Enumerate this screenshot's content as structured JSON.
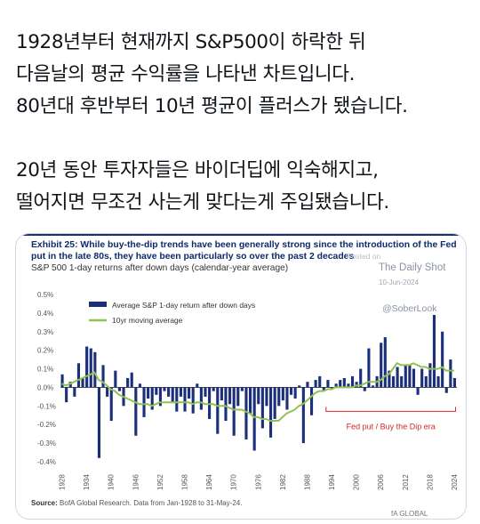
{
  "tweet": {
    "lines": [
      "1928년부터 현재까지 S&P500이 하락한 뒤",
      "다음날의 평균 수익률을 나타낸 차트입니다.",
      "80년대 후반부터 10년 평균이 플러스가 됐습니다.",
      "",
      "20년 동안 투자자들은 바이더딥에 익숙해지고,",
      "떨어지면 무조건 사는게 맞다는게 주입됐습니다."
    ]
  },
  "figure": {
    "exhibit": "Exhibit 25: While buy-the-dip trends have been generally strong since the introduction of the Fed put in the late 80s, they have been particularly so over the past 2 decades",
    "subtitle": "S&P 500 1-day returns after down days (calendar-year average)",
    "watermark_posted": "Posted on",
    "watermark_site": "The Daily Shot",
    "watermark_date": "10-Jun-2024",
    "watermark_handle": "@SoberLook",
    "source_label": "Source:",
    "source_text": "BofA Global Research. Data from Jan-1928 to 31-May-24.",
    "brand": "fA GLOBAL RESEARCH"
  },
  "chart_data": {
    "type": "bar",
    "title": "S&P 500 1-day returns after down days (calendar-year average)",
    "ylim": [
      -0.4,
      0.5
    ],
    "yticks": [
      "0.5%",
      "0.4%",
      "0.3%",
      "0.2%",
      "0.1%",
      "0.0%",
      "-0.1%",
      "-0.2%",
      "-0.3%",
      "-0.4%"
    ],
    "ytick_values": [
      0.5,
      0.4,
      0.3,
      0.2,
      0.1,
      0.0,
      -0.1,
      -0.2,
      -0.3,
      -0.4
    ],
    "xticks": [
      "1928",
      "1934",
      "1940",
      "1946",
      "1952",
      "1958",
      "1964",
      "1970",
      "1976",
      "1982",
      "1988",
      "1994",
      "2000",
      "2006",
      "2012",
      "2018",
      "2024"
    ],
    "x_start_year": 1928,
    "x_end_year": 2024,
    "legend": [
      "Average S&P 1-day return after down days",
      "10yr moving average"
    ],
    "legend_position": "top-left",
    "annotation": "Fed put / Buy the Dip era",
    "annotation_color": "#d62728",
    "bar_color": "#1b2f7a",
    "line_color": "#8fc251",
    "years": [
      1928,
      1929,
      1930,
      1931,
      1932,
      1933,
      1934,
      1935,
      1936,
      1937,
      1938,
      1939,
      1940,
      1941,
      1942,
      1943,
      1944,
      1945,
      1946,
      1947,
      1948,
      1949,
      1950,
      1951,
      1952,
      1953,
      1954,
      1955,
      1956,
      1957,
      1958,
      1959,
      1960,
      1961,
      1962,
      1963,
      1964,
      1965,
      1966,
      1967,
      1968,
      1969,
      1970,
      1971,
      1972,
      1973,
      1974,
      1975,
      1976,
      1977,
      1978,
      1979,
      1980,
      1981,
      1982,
      1983,
      1984,
      1985,
      1986,
      1987,
      1988,
      1989,
      1990,
      1991,
      1992,
      1993,
      1994,
      1995,
      1996,
      1997,
      1998,
      1999,
      2000,
      2001,
      2002,
      2003,
      2004,
      2005,
      2006,
      2007,
      2008,
      2009,
      2010,
      2011,
      2012,
      2013,
      2014,
      2015,
      2016,
      2017,
      2018,
      2019,
      2020,
      2021,
      2022,
      2023,
      2024
    ],
    "values": [
      0.07,
      -0.08,
      0.03,
      -0.05,
      0.13,
      0.05,
      0.22,
      0.21,
      0.19,
      -0.38,
      0.12,
      -0.05,
      -0.18,
      0.09,
      -0.02,
      -0.1,
      0.05,
      0.08,
      -0.26,
      0.02,
      -0.16,
      -0.06,
      -0.12,
      -0.04,
      -0.1,
      -0.02,
      -0.05,
      -0.08,
      -0.13,
      -0.05,
      -0.13,
      -0.06,
      -0.14,
      0.02,
      -0.12,
      -0.05,
      -0.17,
      -0.02,
      -0.25,
      -0.07,
      -0.18,
      -0.09,
      -0.26,
      -0.1,
      -0.02,
      -0.28,
      -0.14,
      -0.34,
      -0.09,
      -0.22,
      -0.1,
      -0.27,
      -0.17,
      -0.1,
      -0.07,
      -0.12,
      -0.04,
      -0.06,
      0.01,
      -0.3,
      0.03,
      -0.15,
      0.04,
      0.06,
      -0.02,
      0.04,
      -0.01,
      0.02,
      0.04,
      0.05,
      0.02,
      0.06,
      0.03,
      0.1,
      -0.02,
      0.21,
      0.01,
      0.06,
      0.24,
      0.27,
      0.09,
      0.06,
      0.11,
      0.06,
      0.12,
      0.12,
      0.1,
      -0.04,
      0.1,
      0.06,
      0.13,
      0.39,
      0.06,
      0.3,
      -0.03,
      0.15,
      0.05
    ],
    "moving_average": [
      0.02,
      0.01,
      0.02,
      0.03,
      0.04,
      0.05,
      0.06,
      0.07,
      0.08,
      0.04,
      0.03,
      0.01,
      -0.01,
      -0.02,
      -0.04,
      -0.05,
      -0.06,
      -0.07,
      -0.08,
      -0.09,
      -0.09,
      -0.09,
      -0.1,
      -0.09,
      -0.08,
      -0.08,
      -0.08,
      -0.08,
      -0.08,
      -0.08,
      -0.08,
      -0.08,
      -0.09,
      -0.08,
      -0.08,
      -0.09,
      -0.09,
      -0.09,
      -0.1,
      -0.1,
      -0.1,
      -0.11,
      -0.12,
      -0.12,
      -0.12,
      -0.13,
      -0.14,
      -0.16,
      -0.16,
      -0.17,
      -0.17,
      -0.18,
      -0.18,
      -0.18,
      -0.16,
      -0.14,
      -0.13,
      -0.12,
      -0.1,
      -0.09,
      -0.07,
      -0.05,
      -0.03,
      -0.02,
      -0.02,
      -0.01,
      -0.01,
      0.0,
      0.0,
      0.0,
      0.0,
      0.0,
      0.01,
      0.01,
      0.02,
      0.03,
      0.03,
      0.03,
      0.04,
      0.06,
      0.07,
      0.1,
      0.13,
      0.12,
      0.12,
      0.12,
      0.13,
      0.12,
      0.11,
      0.11,
      0.1,
      0.1,
      0.1,
      0.11,
      0.09,
      0.09,
      0.09
    ]
  }
}
